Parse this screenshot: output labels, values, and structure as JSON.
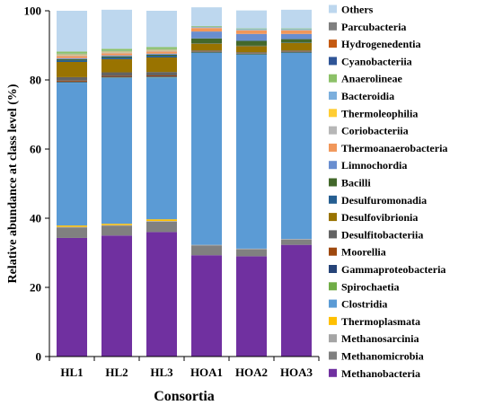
{
  "chart_data": {
    "type": "bar",
    "stacked": true,
    "xlabel": "Consortia",
    "ylabel": "Relative abundance at class level (%)",
    "ylim": [
      0,
      100
    ],
    "yticks": [
      0,
      20,
      40,
      60,
      80,
      100
    ],
    "grid": false,
    "legend_position": "right",
    "categories": [
      "HL1",
      "HL2",
      "HL3",
      "HOA1",
      "HOA2",
      "HOA3"
    ],
    "series": [
      {
        "name": "Methanobacteria",
        "color": "#7030A0",
        "values": [
          34.3,
          35.0,
          36.0,
          29.3,
          29.0,
          32.3
        ]
      },
      {
        "name": "Methanomicrobia",
        "color": "#808080",
        "values": [
          3.0,
          2.8,
          3.0,
          2.8,
          2.0,
          1.5
        ]
      },
      {
        "name": "Methanosarcinia",
        "color": "#A5A5A5",
        "values": [
          0.2,
          0.2,
          0.2,
          0.2,
          0.2,
          0.2
        ]
      },
      {
        "name": "Thermoplasmata",
        "color": "#FFC000",
        "values": [
          0.4,
          0.4,
          0.5,
          0.0,
          0.0,
          0.0
        ]
      },
      {
        "name": "Clostridia",
        "color": "#5B9BD5",
        "values": [
          41.3,
          42.2,
          41.0,
          55.5,
          56.1,
          53.8
        ]
      },
      {
        "name": "Spirochaetia",
        "color": "#70AD47",
        "values": [
          0.1,
          0.1,
          0.1,
          0.1,
          0.1,
          0.1
        ]
      },
      {
        "name": "Gammaproteobacteria",
        "color": "#264478",
        "values": [
          0.2,
          0.2,
          0.2,
          0.2,
          0.2,
          0.2
        ]
      },
      {
        "name": "Moorellia",
        "color": "#9E480E",
        "values": [
          0.3,
          0.3,
          0.3,
          0.1,
          0.1,
          0.1
        ]
      },
      {
        "name": "Desulfitobacteriia",
        "color": "#636363",
        "values": [
          1.0,
          1.0,
          1.0,
          0.3,
          0.3,
          0.3
        ]
      },
      {
        "name": "Desulfovibrionia",
        "color": "#997300",
        "values": [
          4.4,
          3.8,
          4.2,
          2.0,
          1.8,
          2.2
        ]
      },
      {
        "name": "Desulfuromonadia",
        "color": "#255E91",
        "values": [
          0.5,
          0.5,
          0.5,
          0.1,
          0.1,
          0.1
        ]
      },
      {
        "name": "Bacilli",
        "color": "#43682B",
        "values": [
          0.3,
          0.3,
          0.3,
          1.4,
          1.4,
          1.0
        ]
      },
      {
        "name": "Limnochordia",
        "color": "#698ED0",
        "values": [
          0.3,
          0.3,
          0.3,
          2.0,
          2.0,
          1.5
        ]
      },
      {
        "name": "Thermoanaerobacteria",
        "color": "#F1975A",
        "values": [
          0.6,
          0.6,
          0.6,
          1.0,
          1.0,
          1.0
        ]
      },
      {
        "name": "Coriobacteriia",
        "color": "#B7B7B7",
        "values": [
          0.3,
          0.3,
          0.3,
          0.2,
          0.2,
          0.2
        ]
      },
      {
        "name": "Thermoleophilia",
        "color": "#FFCD33",
        "values": [
          0.2,
          0.2,
          0.2,
          0.0,
          0.0,
          0.0
        ]
      },
      {
        "name": "Bacteroidia",
        "color": "#7CAFDD",
        "values": [
          0.2,
          0.2,
          0.2,
          0.2,
          0.2,
          0.2
        ]
      },
      {
        "name": "Anaerolineae",
        "color": "#8CC168",
        "values": [
          0.6,
          0.6,
          0.6,
          0.2,
          0.2,
          0.2
        ]
      },
      {
        "name": "Cyanobacteriia",
        "color": "#2F5597",
        "values": [
          0.0,
          0.0,
          0.0,
          0.0,
          0.0,
          0.0
        ]
      },
      {
        "name": "Hydrogenedentia",
        "color": "#C55A11",
        "values": [
          0.0,
          0.0,
          0.0,
          0.0,
          0.0,
          0.0
        ]
      },
      {
        "name": "Parcubacteria",
        "color": "#7F7F7F",
        "values": [
          0.0,
          0.0,
          0.0,
          0.0,
          0.0,
          0.0
        ]
      },
      {
        "name": "Others",
        "color": "#BDD7EE",
        "values": [
          11.8,
          11.3,
          10.5,
          5.4,
          5.2,
          5.4
        ]
      }
    ]
  }
}
